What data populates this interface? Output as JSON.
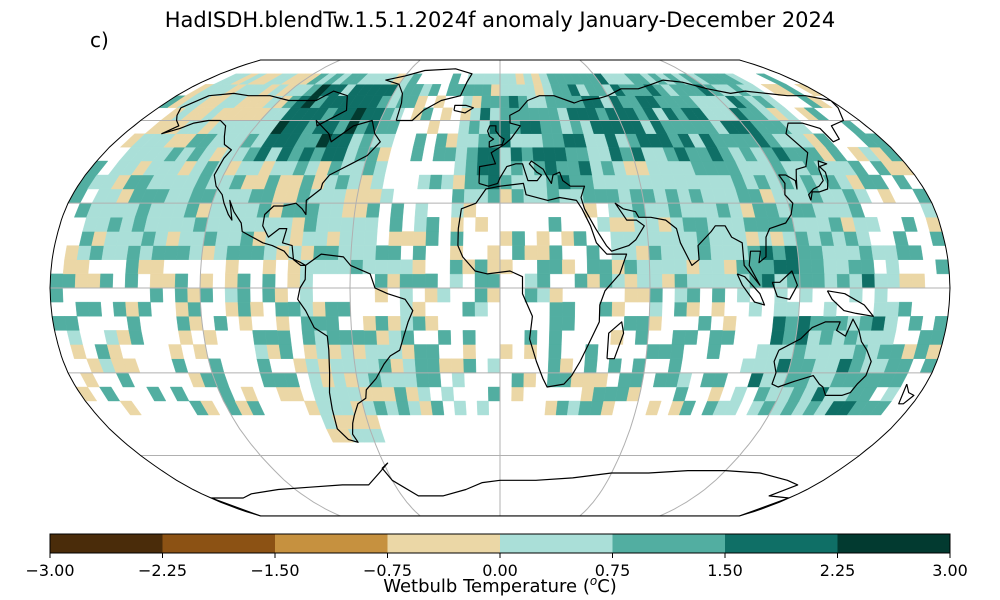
{
  "title": "HadISDH.blendTw.1.5.1.2024f anomaly January-December 2024",
  "panel_label": "c)",
  "colorbar": {
    "label_main": "Wetbulb Temperature (",
    "label_sup": "o",
    "label_end": "C)",
    "ticks": [
      "−3.00",
      "−2.25",
      "−1.50",
      "−0.75",
      "0.00",
      "0.75",
      "1.50",
      "2.25",
      "3.00"
    ],
    "colors": [
      "#4a2c0a",
      "#8c5214",
      "#c6913f",
      "#ebd7a6",
      "#aadfd8",
      "#52aea1",
      "#0f6f66",
      "#023a30"
    ]
  },
  "map": {
    "projection": "Robinson",
    "background": "#ffffff",
    "missing_color": "#ffffff"
  }
}
